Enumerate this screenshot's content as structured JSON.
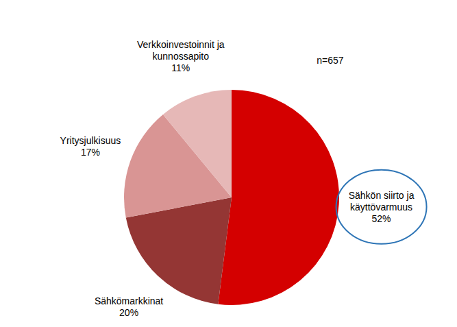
{
  "chart_data": {
    "type": "pie",
    "categories": [
      "Sähkön siirto ja käyttövarmuus",
      "Sähkömarkkinat",
      "Yritysjulkisuus",
      "Verkkoinvestoinnit ja kunnossapito"
    ],
    "values": [
      52,
      20,
      17,
      11
    ],
    "value_labels": [
      "52%",
      "20%",
      "17%",
      "11%"
    ],
    "colors": [
      "#d40000",
      "#943634",
      "#d99594",
      "#e6b8b7"
    ],
    "annotations": [
      "n=657"
    ]
  }
}
